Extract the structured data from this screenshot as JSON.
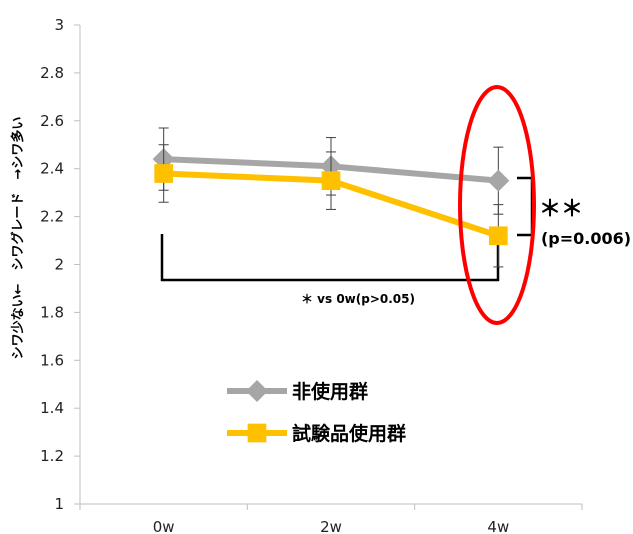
{
  "chart_data": {
    "type": "line",
    "title": "",
    "ylabel": "シワ少ない←　シワグレード　→シワ多い",
    "xlabel": "",
    "categories": [
      "0w",
      "2w",
      "4w"
    ],
    "ylim": [
      1,
      3
    ],
    "yticks": [
      "1",
      "1.2",
      "1.4",
      "1.6",
      "1.8",
      "2",
      "2.2",
      "2.4",
      "2.6",
      "2.8",
      "3"
    ],
    "grid": false,
    "legend": "center",
    "series": [
      {
        "name": "非使用群",
        "color": "#a6a6a6",
        "marker": "diamond",
        "values": [
          2.44,
          2.41,
          2.35
        ],
        "error": [
          0.13,
          0.12,
          0.14
        ]
      },
      {
        "name": "試験品使用群",
        "color": "#ffc000",
        "marker": "square",
        "values": [
          2.38,
          2.35,
          2.12
        ],
        "error": [
          0.12,
          0.12,
          0.13
        ]
      }
    ],
    "annotations": {
      "bracket_label": "＊ vs 0w(p>0.05)",
      "sig_stars": "＊＊",
      "sig_p": "(p=0.006)",
      "highlight_category": "4w",
      "highlight_color": "#ff0000"
    }
  }
}
